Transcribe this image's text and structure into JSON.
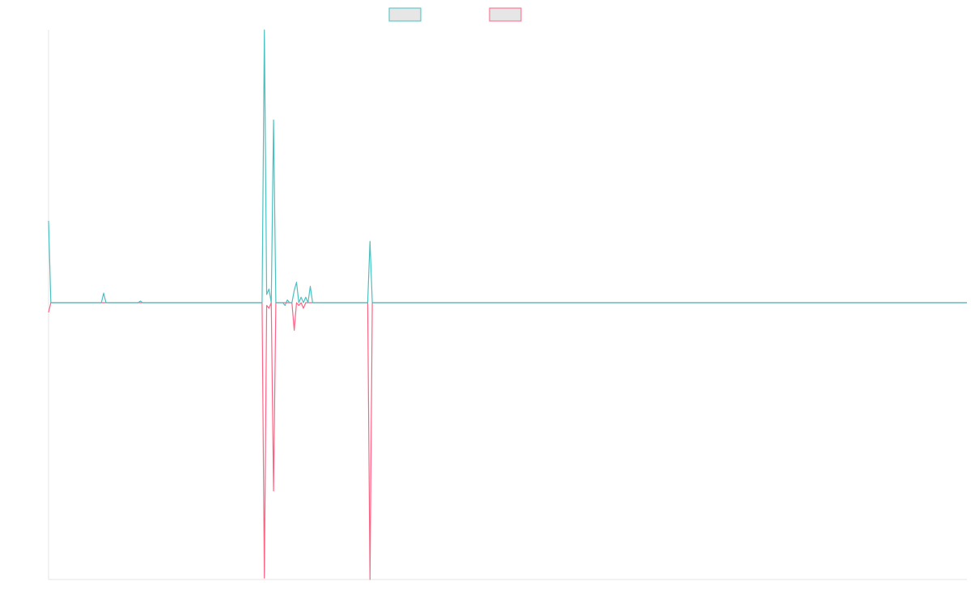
{
  "chart_data": {
    "type": "line",
    "title": "",
    "xlabel": "",
    "ylabel": "",
    "ylim": [
      -1,
      1
    ],
    "n_points": 400,
    "grid": false,
    "legend_placement": "top-center",
    "series": [
      {
        "color": "#4bc0c0",
        "fill": "#e6e6e6",
        "points": [
          [
            0,
            0.3
          ],
          [
            1,
            0.0
          ],
          [
            23,
            0.0
          ],
          [
            24,
            0.035
          ],
          [
            25,
            0.0
          ],
          [
            39,
            0.0
          ],
          [
            40,
            0.006
          ],
          [
            41,
            0.0
          ],
          [
            93,
            0.0
          ],
          [
            94,
            1.0
          ],
          [
            95,
            0.03
          ],
          [
            96,
            0.05
          ],
          [
            97,
            0.0
          ],
          [
            98,
            0.67
          ],
          [
            99,
            0.0
          ],
          [
            102,
            0.0
          ],
          [
            103,
            -0.01
          ],
          [
            104,
            0.01
          ],
          [
            105,
            0.0
          ],
          [
            106,
            0.0
          ],
          [
            107,
            0.045
          ],
          [
            108,
            0.075
          ],
          [
            109,
            0.0
          ],
          [
            110,
            0.02
          ],
          [
            111,
            0.0
          ],
          [
            112,
            0.02
          ],
          [
            113,
            0.0
          ],
          [
            114,
            0.06
          ],
          [
            115,
            0.0
          ],
          [
            139,
            0.0
          ],
          [
            140,
            0.225
          ],
          [
            141,
            0.0
          ],
          [
            400,
            0.0
          ]
        ]
      },
      {
        "color": "#ff6384",
        "fill": "#e6e6e6",
        "points": [
          [
            0,
            -0.035
          ],
          [
            1,
            0.0
          ],
          [
            93,
            0.0
          ],
          [
            94,
            -0.995
          ],
          [
            95,
            -0.01
          ],
          [
            96,
            -0.02
          ],
          [
            97,
            0.0
          ],
          [
            98,
            -0.68
          ],
          [
            99,
            0.0
          ],
          [
            106,
            0.0
          ],
          [
            107,
            -0.1
          ],
          [
            108,
            0.0
          ],
          [
            109,
            -0.01
          ],
          [
            110,
            0.0
          ],
          [
            111,
            -0.02
          ],
          [
            112,
            0.0
          ],
          [
            139,
            0.0
          ],
          [
            140,
            -1.0
          ],
          [
            141,
            0.0
          ],
          [
            400,
            0.0
          ]
        ]
      }
    ]
  }
}
